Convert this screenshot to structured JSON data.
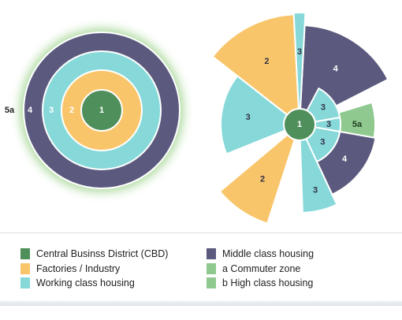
{
  "colors": {
    "cbd": "#4f8f5b",
    "factories": "#f9c56a",
    "working": "#86d8d9",
    "middle": "#5b5a7e",
    "commuter": "#8fc98f",
    "high": "#8fc98f",
    "outline": "#ffffff",
    "glow": "#a9d89a"
  },
  "left_model": {
    "rings": [
      {
        "zone": "middle",
        "label": "4"
      },
      {
        "zone": "working",
        "label": "3"
      },
      {
        "zone": "factories",
        "label": "2"
      },
      {
        "zone": "cbd",
        "label": "1"
      }
    ],
    "outer_label": "5a"
  },
  "right_model": {
    "center_label": "1",
    "sectors": [
      {
        "zone": "factories",
        "label": "2"
      },
      {
        "zone": "working",
        "label": "3"
      },
      {
        "zone": "middle",
        "label": "4"
      },
      {
        "zone": "working",
        "label": "3"
      },
      {
        "zone": "working",
        "label": "3"
      },
      {
        "zone": "commuter",
        "label": "5a"
      },
      {
        "zone": "working",
        "label": "3"
      },
      {
        "zone": "middle",
        "label": "4"
      },
      {
        "zone": "working",
        "label": "3"
      },
      {
        "zone": "factories",
        "label": "2"
      },
      {
        "zone": "working",
        "label": "3"
      }
    ]
  },
  "legend": [
    {
      "zone": "cbd",
      "label": "Central Businss District (CBD)"
    },
    {
      "zone": "factories",
      "label": "Factories / Industry"
    },
    {
      "zone": "working",
      "label": "Working class housing"
    },
    {
      "zone": "middle",
      "label": "Middle class housing"
    },
    {
      "zone": "commuter",
      "label": "a Commuter zone"
    },
    {
      "zone": "high",
      "label": "b High class housing"
    }
  ]
}
